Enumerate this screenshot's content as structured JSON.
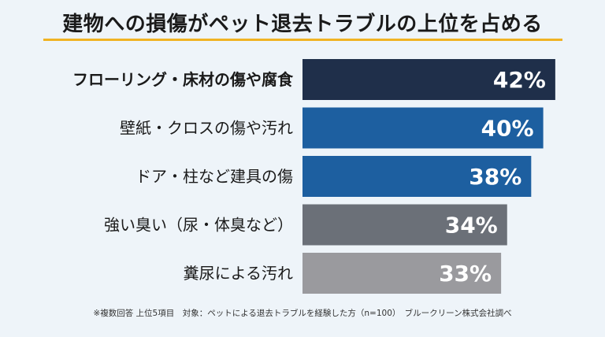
{
  "title": "建物への損傷がペット退去トラブルの上位を占める",
  "footnote": "※複数回答 上位5項目　対象：ペットによる退去トラブルを経験した方（n=100）　ブルークリーン株式会社調べ",
  "colors": {
    "title_underline": "#f0b323",
    "bar_dark_navy": "#1f2f4a",
    "bar_blue": "#1d5fa0",
    "bar_gray": "#6b7078",
    "bar_light_gray": "#9a9a9e"
  },
  "chart_data": {
    "type": "bar",
    "orientation": "horizontal",
    "categories": [
      "フローリング・床材の傷や腐食",
      "壁紙・クロスの傷や汚れ",
      "ドア・柱など建具の傷",
      "強い臭い（尿・体臭など）",
      "糞尿による汚れ"
    ],
    "values": [
      42,
      40,
      38,
      34,
      33
    ],
    "value_labels": [
      "42%",
      "40%",
      "38%",
      "34%",
      "33%"
    ],
    "bar_colors": [
      "#1f2f4a",
      "#1d5fa0",
      "#1d5fa0",
      "#6b7078",
      "#9a9a9e"
    ],
    "highlight_first_category": true,
    "xlim": [
      0,
      60
    ],
    "grid": false,
    "legend": "none"
  }
}
